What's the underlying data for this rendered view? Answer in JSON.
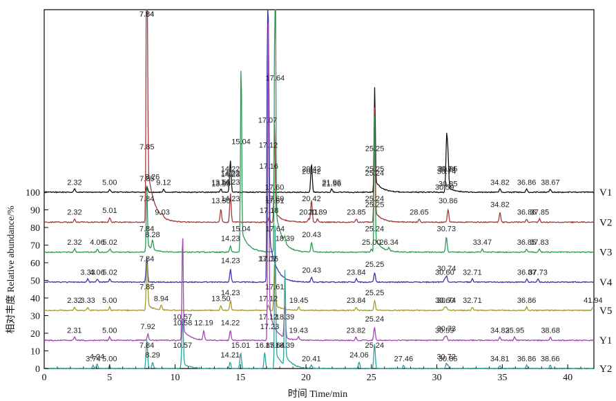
{
  "chart_data": {
    "type": "line",
    "xlabel": "时间 Time/min",
    "ylabel": "相对丰度 Relative abundance/%",
    "xlim": [
      0,
      42
    ],
    "ylim": [
      0,
      100
    ],
    "x_ticks": [
      0,
      5,
      10,
      15,
      20,
      25,
      30,
      35,
      40
    ],
    "y_ticks": [
      0,
      10,
      20,
      30,
      40,
      50,
      60,
      70,
      80,
      90,
      100
    ],
    "grid": false,
    "legend": "series names printed at right end of each trace",
    "series": [
      {
        "name": "V1",
        "color": "#111111",
        "baseline": 100,
        "scale": 0.9,
        "peaks": [
          [
            2.32,
            2
          ],
          [
            5.0,
            2
          ],
          [
            7.85,
            4
          ],
          [
            9.12,
            2
          ],
          [
            13.5,
            2
          ],
          [
            14.22,
            14
          ],
          [
            14.23,
            6
          ],
          [
            20.42,
            18
          ],
          [
            21.96,
            2
          ],
          [
            25.25,
            66
          ],
          [
            30.74,
            30
          ],
          [
            30.85,
            20
          ],
          [
            34.82,
            2
          ],
          [
            36.86,
            2
          ],
          [
            38.67,
            2
          ]
        ],
        "labels": [
          "2.32",
          "5.00",
          "7.85",
          "9.12",
          "13.50",
          "14.22",
          "14.23",
          "20.42",
          "21.96",
          "25.25",
          "30.74",
          "30.85",
          "34.82",
          "36.86",
          "38.67"
        ]
      },
      {
        "name": "V2",
        "color": "#a03a3a",
        "baseline": 83,
        "scale": 0.9,
        "peaks": [
          [
            2.32,
            2
          ],
          [
            5.01,
            3
          ],
          [
            7.84,
            330
          ],
          [
            9.03,
            2
          ],
          [
            13.5,
            8
          ],
          [
            14.23,
            18
          ],
          [
            17.18,
            3
          ],
          [
            17.6,
            55
          ],
          [
            17.61,
            8
          ],
          [
            20.21,
            2
          ],
          [
            20.42,
            14
          ],
          [
            20.89,
            2
          ],
          [
            23.85,
            2
          ],
          [
            25.24,
            60
          ],
          [
            25.25,
            6
          ],
          [
            28.65,
            2
          ],
          [
            30.86,
            8
          ],
          [
            34.82,
            6
          ],
          [
            36.86,
            2
          ],
          [
            37.85,
            2
          ]
        ],
        "labels": [
          "2.32",
          "5.01",
          "7.84",
          "9.03",
          "13.50",
          "14.23",
          "17.18",
          "17.60",
          "17.61",
          "20.21",
          "20.42",
          "20.89",
          "23.85",
          "25.24",
          "25.25",
          "28.65",
          "30.86",
          "34.82",
          "36.86",
          "37.85"
        ]
      },
      {
        "name": "V3",
        "color": "#2e9a55",
        "baseline": 66,
        "scale": 0.9,
        "peaks": [
          [
            2.32,
            2
          ],
          [
            4.06,
            2
          ],
          [
            5.02,
            2
          ],
          [
            7.84,
            42
          ],
          [
            8.28,
            6
          ],
          [
            14.23,
            4
          ],
          [
            15.04,
            120
          ],
          [
            17.64,
            235
          ],
          [
            18.39,
            4
          ],
          [
            20.43,
            6
          ],
          [
            25.0,
            2
          ],
          [
            25.24,
            78
          ],
          [
            26.34,
            2
          ],
          [
            30.73,
            10
          ],
          [
            33.47,
            2
          ],
          [
            36.85,
            2
          ],
          [
            37.83,
            2
          ]
        ],
        "labels": [
          "2.32",
          "4.06",
          "5.02",
          "7.84",
          "8.28",
          "14.23",
          "15.04",
          "17.64",
          "18.39",
          "20.43",
          "25.00",
          "25.24",
          "26.34",
          "30.73",
          "33.47",
          "36.85",
          "37.83"
        ]
      },
      {
        "name": "V4",
        "color": "#3838a8",
        "baseline": 49,
        "scale": 0.9,
        "peaks": [
          [
            3.33,
            2
          ],
          [
            4.06,
            2
          ],
          [
            5.02,
            2
          ],
          [
            7.84,
            16
          ],
          [
            14.23,
            8
          ],
          [
            17.07,
            200
          ],
          [
            17.16,
            85
          ],
          [
            20.43,
            3
          ],
          [
            23.84,
            2
          ],
          [
            25.25,
            6
          ],
          [
            30.6,
            2
          ],
          [
            30.74,
            4
          ],
          [
            32.71,
            2
          ],
          [
            36.87,
            2
          ],
          [
            37.73,
            2
          ]
        ],
        "labels": [
          "3.33",
          "4.06",
          "5.02",
          "7.84",
          "14.23",
          "17.07",
          "17.16",
          "20.43",
          "23.84",
          "25.25",
          "30.60",
          "30.74",
          "32.71",
          "36.87",
          "37.73"
        ]
      },
      {
        "name": "V5",
        "color": "#a59a2c",
        "baseline": 33,
        "scale": 0.9,
        "peaks": [
          [
            2.32,
            2
          ],
          [
            3.33,
            2
          ],
          [
            5.0,
            2
          ],
          [
            7.85,
            30
          ],
          [
            8.94,
            3
          ],
          [
            13.5,
            3
          ],
          [
            14.23,
            6
          ],
          [
            17.61,
            30
          ],
          [
            17.12,
            3
          ],
          [
            19.45,
            2
          ],
          [
            23.84,
            2
          ],
          [
            25.25,
            6
          ],
          [
            30.6,
            2
          ],
          [
            30.74,
            2
          ],
          [
            32.71,
            2
          ],
          [
            36.86,
            2
          ],
          [
            41.94,
            2
          ]
        ],
        "labels": [
          "2.32",
          "3.33",
          "5.00",
          "7.85",
          "8.94",
          "13.50",
          "14.23",
          "17.61",
          "17.12",
          "19.45",
          "23.84",
          "25.25",
          "30.60",
          "30.74",
          "32.71",
          "36.86",
          "41.94"
        ]
      },
      {
        "name": "Y1",
        "color": "#a048b0",
        "baseline": 16,
        "scale": 0.9,
        "peaks": [
          [
            2.31,
            2
          ],
          [
            5.0,
            2
          ],
          [
            7.92,
            4
          ],
          [
            10.57,
            60
          ],
          [
            10.58,
            6
          ],
          [
            12.19,
            6
          ],
          [
            14.22,
            6
          ],
          [
            17.12,
            180
          ],
          [
            17.23,
            4
          ],
          [
            18.39,
            20
          ],
          [
            19.43,
            2
          ],
          [
            23.82,
            2
          ],
          [
            25.24,
            8
          ],
          [
            30.59,
            2
          ],
          [
            30.73,
            3
          ],
          [
            34.82,
            2
          ],
          [
            35.95,
            2
          ],
          [
            38.68,
            2
          ]
        ],
        "labels": [
          "2.31",
          "5.00",
          "7.92",
          "10.57",
          "10.58",
          "12.19",
          "14.22",
          "17.12",
          "17.23",
          "18.39",
          "19.43",
          "23.82",
          "25.24",
          "30.59",
          "30.73",
          "34.82",
          "35.95",
          "38.68"
        ]
      },
      {
        "name": "Y2",
        "color": "#2aa39a",
        "baseline": 0,
        "scale": 0.9,
        "peaks": [
          [
            3.74,
            2
          ],
          [
            4.04,
            3
          ],
          [
            5.0,
            2
          ],
          [
            7.84,
            18
          ],
          [
            8.29,
            4
          ],
          [
            10.57,
            30
          ],
          [
            14.21,
            4
          ],
          [
            15.01,
            10
          ],
          [
            16.85,
            10
          ],
          [
            17.64,
            90
          ],
          [
            18.39,
            60
          ],
          [
            20.41,
            2
          ],
          [
            24.06,
            4
          ],
          [
            25.24,
            15
          ],
          [
            27.46,
            2
          ],
          [
            30.72,
            3
          ],
          [
            30.85,
            2
          ],
          [
            34.81,
            2
          ],
          [
            36.86,
            2
          ],
          [
            38.66,
            2
          ]
        ],
        "labels": [
          "3.74",
          "4.04",
          "5.00",
          "7.84",
          "8.29",
          "10.57",
          "14.21",
          "15.01",
          "16.85",
          "17.64",
          "18.39",
          "20.41",
          "24.06",
          "25.24",
          "27.46",
          "30.72",
          "30.85",
          "34.81",
          "36.86",
          "38.66"
        ]
      }
    ],
    "annotations": [
      {
        "text": "7.84",
        "x": 7.84,
        "series": "V1",
        "height": 136
      },
      {
        "text": "7.84",
        "x": 7.84,
        "series": "V2",
        "height": 126
      },
      {
        "text": "7.85",
        "x": 7.85,
        "series": "V3",
        "height": 56
      },
      {
        "text": "8.26",
        "x": 8.26,
        "series": "V1",
        "height": 5
      },
      {
        "text": "13.50",
        "x": 13.5,
        "series": "V1",
        "height": 1
      },
      {
        "text": "14.22",
        "x": 14.22,
        "series": "V1",
        "height": 7
      },
      {
        "text": "14.23",
        "x": 14.23,
        "series": "V1",
        "height": 2
      },
      {
        "text": "15.04",
        "x": 15.04,
        "series": "V2",
        "height": 42
      },
      {
        "text": "17.64",
        "x": 17.64,
        "series": "V2",
        "height": 78
      },
      {
        "text": "17.07",
        "x": 17.07,
        "series": "V2",
        "height": 54
      },
      {
        "text": "17.12",
        "x": 17.12,
        "series": "V2",
        "height": 40
      },
      {
        "text": "17.16",
        "x": 17.16,
        "series": "V1",
        "height": 11
      },
      {
        "text": "17.60",
        "x": 17.6,
        "series": "V1",
        "height": -1
      },
      {
        "text": "20.42",
        "x": 20.42,
        "series": "V1",
        "height": 8
      },
      {
        "text": "21.96",
        "x": 21.96,
        "series": "V1",
        "height": 1
      },
      {
        "text": "25.25",
        "x": 25.25,
        "series": "V1",
        "height": 21
      },
      {
        "text": "25.24",
        "x": 25.24,
        "series": "V1",
        "height": 7
      },
      {
        "text": "30.74",
        "x": 30.74,
        "series": "V1",
        "height": 8
      },
      {
        "text": "30.85",
        "x": 30.85,
        "series": "V1",
        "height": 1
      },
      {
        "text": "30.59",
        "x": 30.59,
        "series": "V1",
        "height": -1
      }
    ]
  }
}
